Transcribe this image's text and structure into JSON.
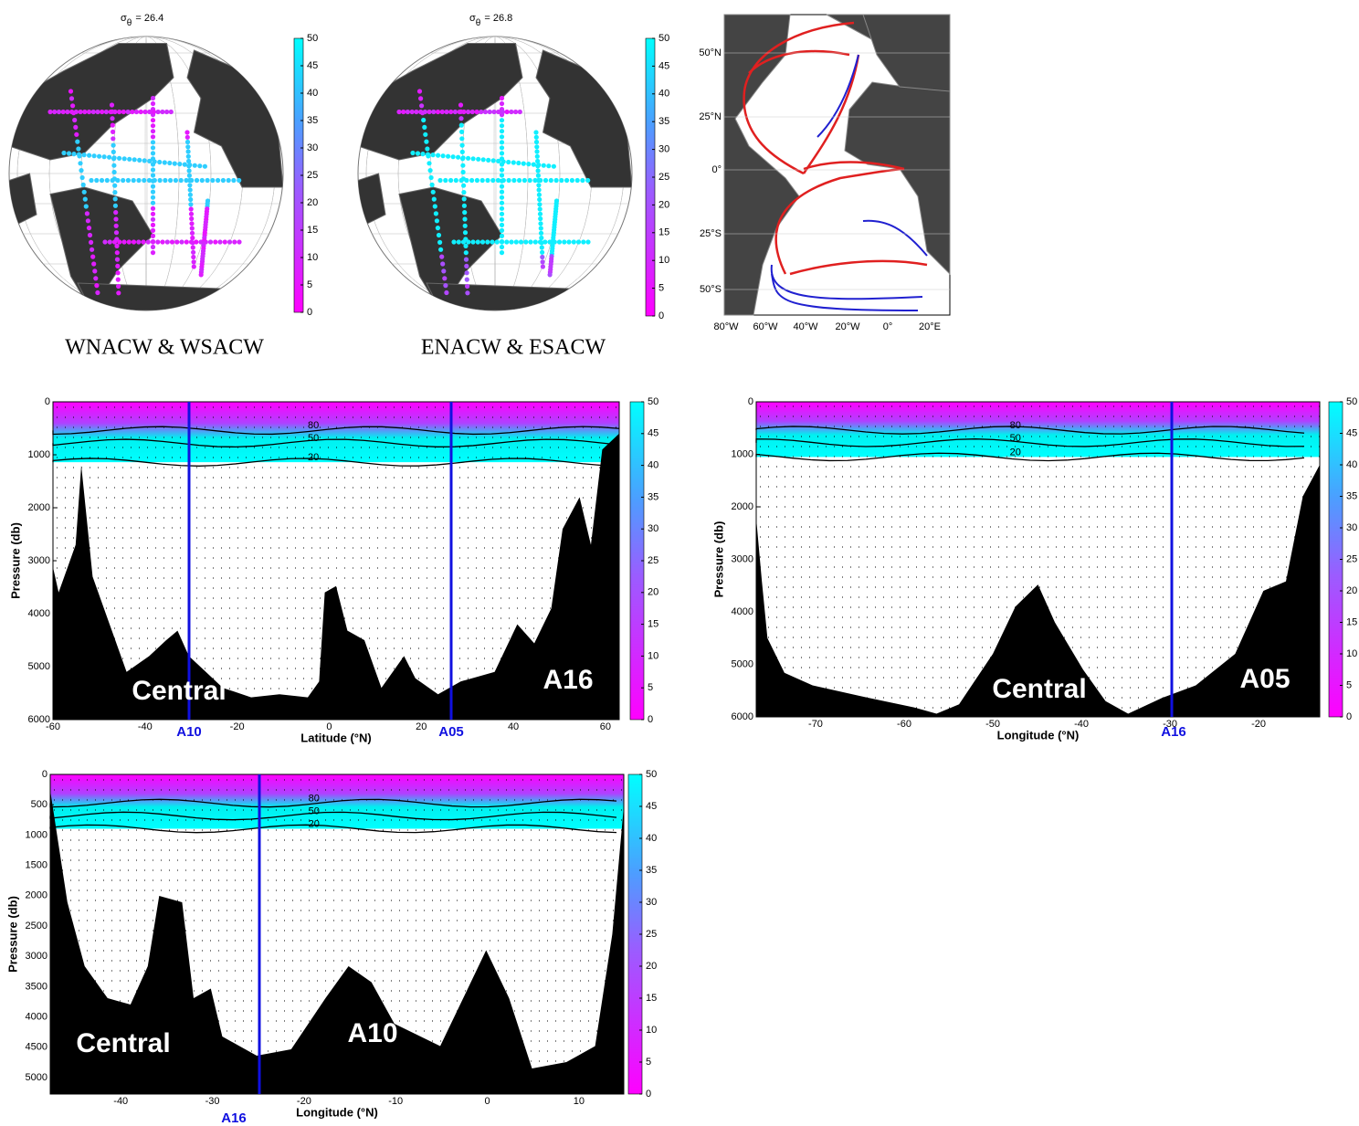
{
  "globes": [
    {
      "title": {
        "symbol": "σ",
        "sub": "θ",
        "rest": "= 26.4"
      },
      "colorbar_ticks": [
        0,
        5,
        10,
        15,
        20,
        25,
        30,
        35,
        40,
        45,
        50
      ],
      "caption": "WNACW & WSACW"
    },
    {
      "title": {
        "symbol": "σ",
        "sub": "θ",
        "rest": "= 26.8"
      },
      "colorbar_ticks": [
        0,
        5,
        10,
        15,
        20,
        25,
        30,
        35,
        40,
        45,
        50
      ],
      "caption": "ENACW & ESACW"
    }
  ],
  "map": {
    "lat_labels": [
      "50°N",
      "25°N",
      "0°",
      "25°S",
      "50°S"
    ],
    "lon_labels": [
      "80°W",
      "60°W",
      "40°W",
      "20°W",
      "0°",
      "20°E"
    ]
  },
  "sections": [
    {
      "ylabel": "Pressure (db)",
      "xlabel": "Latitude (°N)",
      "xlim": [
        -60,
        63
      ],
      "ylim": [
        0,
        6000
      ],
      "xticks": [
        -60,
        -40,
        -20,
        0,
        20,
        40,
        60
      ],
      "yticks": [
        0,
        1000,
        2000,
        3000,
        4000,
        5000,
        6000
      ],
      "colorbar_ticks": [
        0,
        5,
        10,
        15,
        20,
        25,
        30,
        35,
        40,
        45,
        50
      ],
      "labels": [
        "Central",
        "A16"
      ],
      "line_labels": [
        "A10",
        "A05"
      ],
      "contour_labels": [
        "80",
        "50",
        "20"
      ]
    },
    {
      "ylabel": "Pressure (db)",
      "xlabel": "Longitude (°N)",
      "xlim": [
        -76.7,
        -13.1
      ],
      "ylim": [
        0,
        6000
      ],
      "xticks": [
        -70,
        -60,
        -50,
        -40,
        -30,
        -20
      ],
      "yticks": [
        0,
        1000,
        2000,
        3000,
        4000,
        5000,
        6000
      ],
      "colorbar_ticks": [
        0,
        5,
        10,
        15,
        20,
        25,
        30,
        35,
        40,
        45,
        50
      ],
      "labels": [
        "Central",
        "A05"
      ],
      "line_labels": [
        "A16"
      ],
      "contour_labels": [
        "80",
        "50",
        "20"
      ]
    },
    {
      "ylabel": "Pressure (db)",
      "xlabel": "Longitude (°N)",
      "xlim": [
        -47.7,
        14.9
      ],
      "ylim": [
        0,
        5271
      ],
      "xticks": [
        -40,
        -30,
        -20,
        -10,
        0,
        10
      ],
      "yticks": [
        0,
        500,
        1000,
        1500,
        2000,
        2500,
        3000,
        3500,
        4000,
        4500,
        5000
      ],
      "colorbar_ticks": [
        0,
        5,
        10,
        15,
        20,
        25,
        30,
        35,
        40,
        45,
        50
      ],
      "labels": [
        "Central",
        "A10"
      ],
      "line_labels": [
        "A16"
      ],
      "contour_labels": [
        "80",
        "50",
        "20"
      ]
    }
  ]
}
